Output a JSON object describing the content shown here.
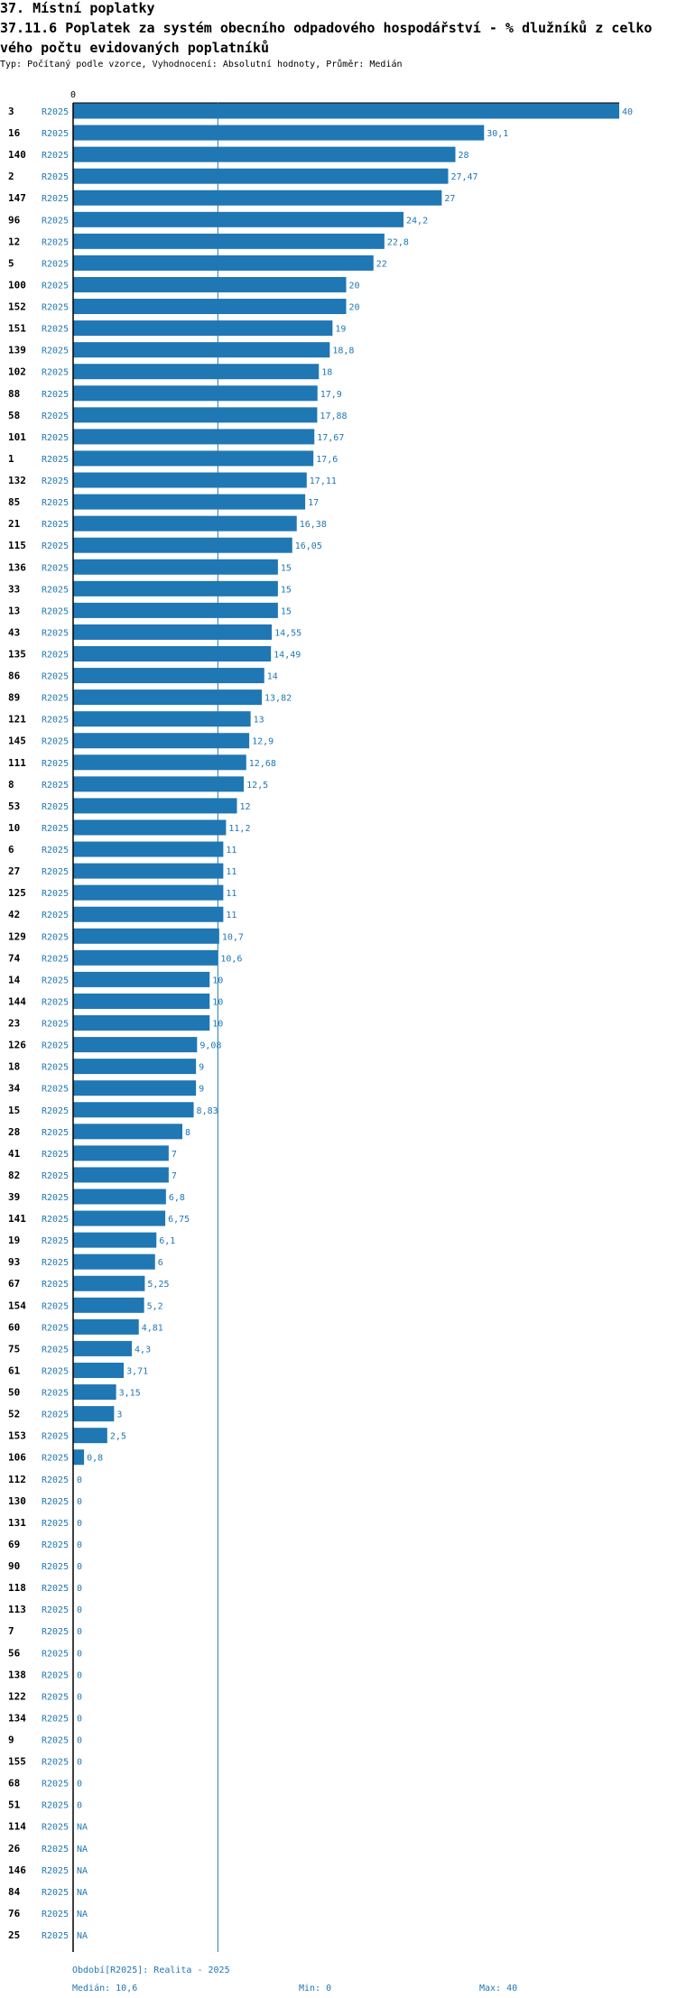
{
  "header": {
    "line1": "37. Místní poplatky",
    "line2": "37.11.6 Poplatek za systém obecního odpadového hospodářství  - % dlužníků z celko",
    "line3": "vého počtu evidovaných poplatníků",
    "line4": "Typ: Počítaný podle vzorce, Vyhodnocení: Absolutní hodnoty, Průměr: Medián"
  },
  "footer": {
    "period": "Období[R2025]: Realita - 2025",
    "median": "Medián: 10,6",
    "min": "Min: 0",
    "max": "Max: 40"
  },
  "colors": {
    "bar": "#1f77b4",
    "median_line": "#1f77b4",
    "axis": "#000000"
  },
  "chart_data": {
    "type": "bar",
    "orientation": "horizontal",
    "title": "37.11.6 Poplatek za systém obecního odpadového hospodářství  - % dlužníků z celkového počtu evidovaných poplatníků",
    "x_tick_label": "0",
    "xlim": [
      0,
      40
    ],
    "median": 10.6,
    "period": "R2025",
    "rows": [
      {
        "id": "3",
        "value": 40,
        "label": "40"
      },
      {
        "id": "16",
        "value": 30.1,
        "label": "30,1"
      },
      {
        "id": "140",
        "value": 28,
        "label": "28"
      },
      {
        "id": "2",
        "value": 27.47,
        "label": "27,47"
      },
      {
        "id": "147",
        "value": 27,
        "label": "27"
      },
      {
        "id": "96",
        "value": 24.2,
        "label": "24,2"
      },
      {
        "id": "12",
        "value": 22.8,
        "label": "22,8"
      },
      {
        "id": "5",
        "value": 22,
        "label": "22"
      },
      {
        "id": "100",
        "value": 20,
        "label": "20"
      },
      {
        "id": "152",
        "value": 20,
        "label": "20"
      },
      {
        "id": "151",
        "value": 19,
        "label": "19"
      },
      {
        "id": "139",
        "value": 18.8,
        "label": "18,8"
      },
      {
        "id": "102",
        "value": 18,
        "label": "18"
      },
      {
        "id": "88",
        "value": 17.9,
        "label": "17,9"
      },
      {
        "id": "58",
        "value": 17.88,
        "label": "17,88"
      },
      {
        "id": "101",
        "value": 17.67,
        "label": "17,67"
      },
      {
        "id": "1",
        "value": 17.6,
        "label": "17,6"
      },
      {
        "id": "132",
        "value": 17.11,
        "label": "17,11"
      },
      {
        "id": "85",
        "value": 17,
        "label": "17"
      },
      {
        "id": "21",
        "value": 16.38,
        "label": "16,38"
      },
      {
        "id": "115",
        "value": 16.05,
        "label": "16,05"
      },
      {
        "id": "136",
        "value": 15,
        "label": "15"
      },
      {
        "id": "33",
        "value": 15,
        "label": "15"
      },
      {
        "id": "13",
        "value": 15,
        "label": "15"
      },
      {
        "id": "43",
        "value": 14.55,
        "label": "14,55"
      },
      {
        "id": "135",
        "value": 14.49,
        "label": "14,49"
      },
      {
        "id": "86",
        "value": 14,
        "label": "14"
      },
      {
        "id": "89",
        "value": 13.82,
        "label": "13,82"
      },
      {
        "id": "121",
        "value": 13,
        "label": "13"
      },
      {
        "id": "145",
        "value": 12.9,
        "label": "12,9"
      },
      {
        "id": "111",
        "value": 12.68,
        "label": "12,68"
      },
      {
        "id": "8",
        "value": 12.5,
        "label": "12,5"
      },
      {
        "id": "53",
        "value": 12,
        "label": "12"
      },
      {
        "id": "10",
        "value": 11.2,
        "label": "11,2"
      },
      {
        "id": "6",
        "value": 11,
        "label": "11"
      },
      {
        "id": "27",
        "value": 11,
        "label": "11"
      },
      {
        "id": "125",
        "value": 11,
        "label": "11"
      },
      {
        "id": "42",
        "value": 11,
        "label": "11"
      },
      {
        "id": "129",
        "value": 10.7,
        "label": "10,7"
      },
      {
        "id": "74",
        "value": 10.6,
        "label": "10,6"
      },
      {
        "id": "14",
        "value": 10,
        "label": "10"
      },
      {
        "id": "144",
        "value": 10,
        "label": "10"
      },
      {
        "id": "23",
        "value": 10,
        "label": "10"
      },
      {
        "id": "126",
        "value": 9.08,
        "label": "9,08"
      },
      {
        "id": "18",
        "value": 9,
        "label": "9"
      },
      {
        "id": "34",
        "value": 9,
        "label": "9"
      },
      {
        "id": "15",
        "value": 8.83,
        "label": "8,83"
      },
      {
        "id": "28",
        "value": 8,
        "label": "8"
      },
      {
        "id": "41",
        "value": 7,
        "label": "7"
      },
      {
        "id": "82",
        "value": 7,
        "label": "7"
      },
      {
        "id": "39",
        "value": 6.8,
        "label": "6,8"
      },
      {
        "id": "141",
        "value": 6.75,
        "label": "6,75"
      },
      {
        "id": "19",
        "value": 6.1,
        "label": "6,1"
      },
      {
        "id": "93",
        "value": 6,
        "label": "6"
      },
      {
        "id": "67",
        "value": 5.25,
        "label": "5,25"
      },
      {
        "id": "154",
        "value": 5.2,
        "label": "5,2"
      },
      {
        "id": "60",
        "value": 4.81,
        "label": "4,81"
      },
      {
        "id": "75",
        "value": 4.3,
        "label": "4,3"
      },
      {
        "id": "61",
        "value": 3.71,
        "label": "3,71"
      },
      {
        "id": "50",
        "value": 3.15,
        "label": "3,15"
      },
      {
        "id": "52",
        "value": 3,
        "label": "3"
      },
      {
        "id": "153",
        "value": 2.5,
        "label": "2,5"
      },
      {
        "id": "106",
        "value": 0.8,
        "label": "0,8"
      },
      {
        "id": "112",
        "value": 0,
        "label": "0"
      },
      {
        "id": "130",
        "value": 0,
        "label": "0"
      },
      {
        "id": "131",
        "value": 0,
        "label": "0"
      },
      {
        "id": "69",
        "value": 0,
        "label": "0"
      },
      {
        "id": "90",
        "value": 0,
        "label": "0"
      },
      {
        "id": "118",
        "value": 0,
        "label": "0"
      },
      {
        "id": "113",
        "value": 0,
        "label": "0"
      },
      {
        "id": "7",
        "value": 0,
        "label": "0"
      },
      {
        "id": "56",
        "value": 0,
        "label": "0"
      },
      {
        "id": "138",
        "value": 0,
        "label": "0"
      },
      {
        "id": "122",
        "value": 0,
        "label": "0"
      },
      {
        "id": "134",
        "value": 0,
        "label": "0"
      },
      {
        "id": "9",
        "value": 0,
        "label": "0"
      },
      {
        "id": "155",
        "value": 0,
        "label": "0"
      },
      {
        "id": "68",
        "value": 0,
        "label": "0"
      },
      {
        "id": "51",
        "value": 0,
        "label": "0"
      },
      {
        "id": "114",
        "value": null,
        "label": "NA"
      },
      {
        "id": "26",
        "value": null,
        "label": "NA"
      },
      {
        "id": "146",
        "value": null,
        "label": "NA"
      },
      {
        "id": "84",
        "value": null,
        "label": "NA"
      },
      {
        "id": "76",
        "value": null,
        "label": "NA"
      },
      {
        "id": "25",
        "value": null,
        "label": "NA"
      }
    ]
  }
}
